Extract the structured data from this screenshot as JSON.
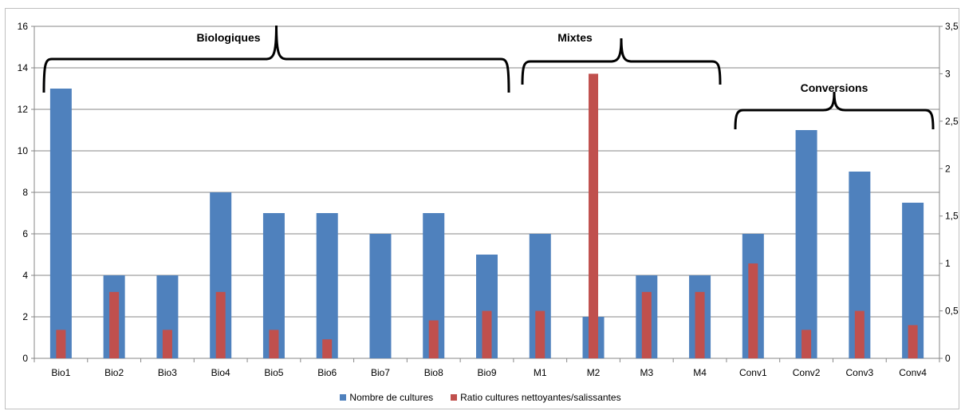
{
  "chart_data": {
    "type": "bar",
    "title": "",
    "categories": [
      "Bio1",
      "Bio2",
      "Bio3",
      "Bio4",
      "Bio5",
      "Bio6",
      "Bio7",
      "Bio8",
      "Bio9",
      "M1",
      "M2",
      "M3",
      "M4",
      "Conv1",
      "Conv2",
      "Conv3",
      "Conv4"
    ],
    "series": [
      {
        "name": "Nombre de cultures",
        "axis": "left",
        "color": "#4f81bd",
        "values": [
          13,
          4,
          4,
          8,
          7,
          7,
          6,
          7,
          5,
          6,
          2,
          4,
          4,
          6,
          11,
          9,
          7.5
        ]
      },
      {
        "name": "Ratio cultures nettoyantes/salissantes",
        "axis": "right",
        "color": "#c0504d",
        "values": [
          0.3,
          0.7,
          0.3,
          0.7,
          0.3,
          0.2,
          0,
          0.4,
          0.5,
          0.5,
          3,
          0.7,
          0.7,
          1,
          0.3,
          0.5,
          0.35
        ]
      }
    ],
    "y_left": {
      "min": 0,
      "max": 16,
      "ticks": [
        "0",
        "2",
        "4",
        "6",
        "8",
        "10",
        "12",
        "14",
        "16"
      ]
    },
    "y_right": {
      "min": 0,
      "max": 3.5,
      "ticks": [
        "0",
        "0,5",
        "1",
        "1,5",
        "2",
        "2,5",
        "3",
        "3,5"
      ]
    },
    "grid": true,
    "legend_position": "bottom",
    "annotations": [
      {
        "label": "Biologiques",
        "from": "Bio1",
        "to": "Bio9"
      },
      {
        "label": "Mixtes",
        "from": "M1",
        "to": "M4"
      },
      {
        "label": "Conversions",
        "from": "Conv1",
        "to": "Conv4"
      }
    ]
  }
}
